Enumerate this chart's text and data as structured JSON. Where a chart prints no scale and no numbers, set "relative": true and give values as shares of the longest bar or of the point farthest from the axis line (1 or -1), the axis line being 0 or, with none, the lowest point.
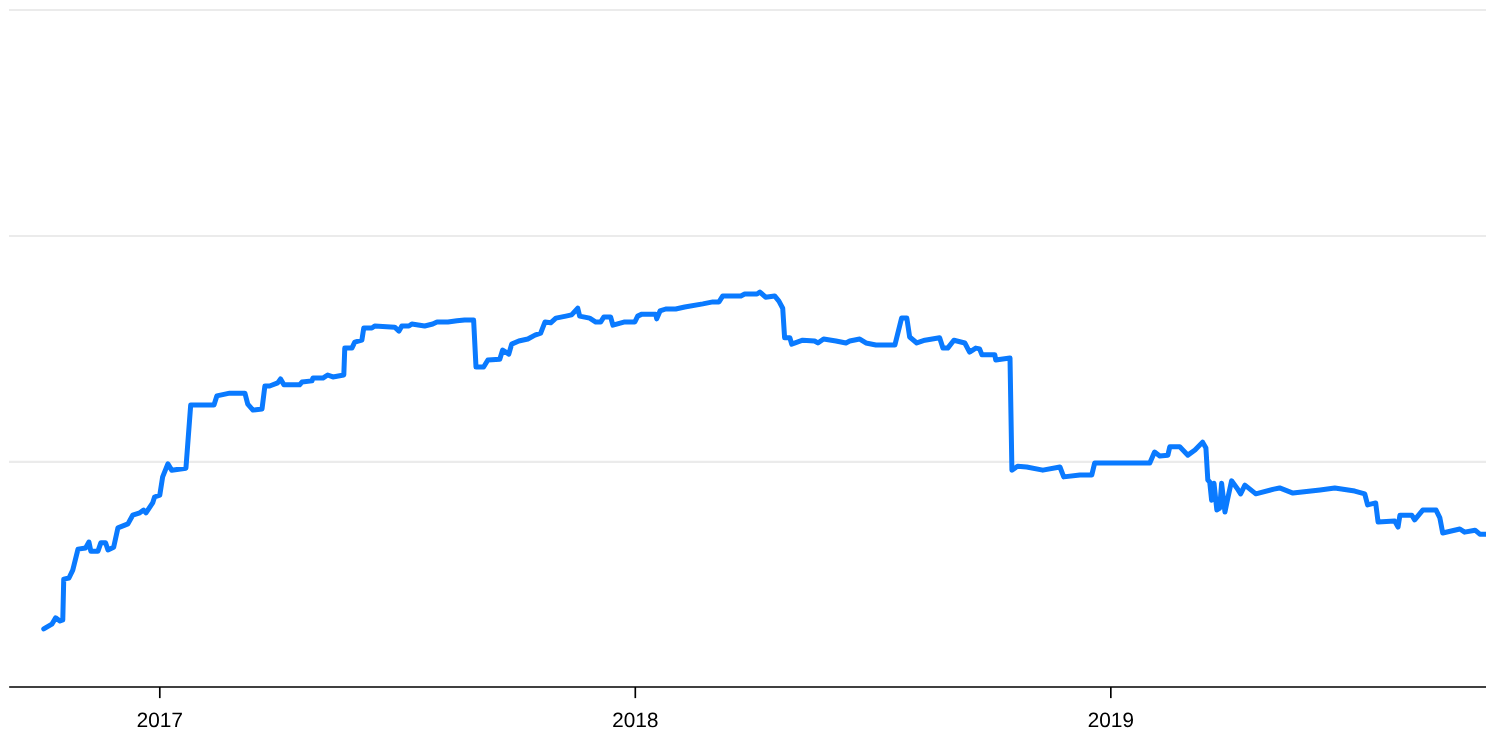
{
  "chart_data": {
    "type": "line",
    "relative": true,
    "tick_labels": "x",
    "line_style": "solid",
    "marker": "none",
    "ref_lines": [
      {
        "axis": "y",
        "value": 0.57,
        "color": "#ebebeb"
      },
      {
        "axis": "y",
        "value": 1.142,
        "color": "#ebebeb"
      },
      {
        "axis": "y",
        "value": 1.714,
        "color": "#ebebeb"
      }
    ],
    "xlim": [
      2016.685,
      2019.789
    ],
    "xticks": [
      2017,
      2018,
      2019
    ],
    "series": [
      {
        "color": "#0a7aff",
        "x": [
          2016.756,
          2016.773,
          2016.781,
          2016.79,
          2016.796,
          2016.798,
          2016.809,
          2016.817,
          2016.828,
          2016.844,
          2016.851,
          2016.855,
          2016.87,
          2016.876,
          2016.886,
          2016.891,
          2016.903,
          2016.912,
          2016.933,
          2016.943,
          2016.958,
          2016.966,
          2016.971,
          2016.985,
          2016.989,
          2017.0,
          2017.006,
          2017.017,
          2017.025,
          2017.055,
          2017.065,
          2017.114,
          2017.12,
          2017.147,
          2017.179,
          2017.185,
          2017.196,
          2017.215,
          2017.221,
          2017.231,
          2017.248,
          2017.254,
          2017.261,
          2017.294,
          2017.299,
          2017.32,
          2017.322,
          2017.343,
          2017.353,
          2017.364,
          2017.387,
          2017.389,
          2017.404,
          2017.41,
          2017.425,
          2017.429,
          2017.446,
          2017.452,
          2017.494,
          2017.503,
          2017.509,
          2017.524,
          2017.53,
          2017.557,
          2017.574,
          2017.583,
          2017.606,
          2017.625,
          2017.641,
          2017.66,
          2017.665,
          2017.681,
          2017.69,
          2017.715,
          2017.721,
          2017.734,
          2017.74,
          2017.755,
          2017.774,
          2017.789,
          2017.801,
          2017.81,
          2017.822,
          2017.833,
          2017.854,
          2017.866,
          2017.879,
          2017.883,
          2017.904,
          2017.917,
          2017.927,
          2017.934,
          2017.948,
          2017.953,
          2017.976,
          2017.999,
          2018.005,
          2018.014,
          2018.043,
          2018.045,
          2018.052,
          2018.064,
          2018.085,
          2018.104,
          2018.142,
          2018.163,
          2018.176,
          2018.184,
          2018.222,
          2018.23,
          2018.256,
          2018.262,
          2018.274,
          2018.293,
          2018.302,
          2018.31,
          2018.314,
          2018.325,
          2018.329,
          2018.352,
          2018.377,
          2018.384,
          2018.396,
          2018.422,
          2018.443,
          2018.451,
          2018.472,
          2018.485,
          2018.506,
          2018.546,
          2018.56,
          2018.571,
          2018.577,
          2018.592,
          2018.609,
          2018.64,
          2018.647,
          2018.657,
          2018.67,
          2018.693,
          2018.703,
          2018.716,
          2018.724,
          2018.729,
          2018.756,
          2018.758,
          2018.788,
          2018.792,
          2018.804,
          2018.823,
          2018.857,
          2018.893,
          2018.901,
          2018.935,
          2018.96,
          2018.966,
          2019.082,
          2019.092,
          2019.103,
          2019.12,
          2019.124,
          2019.145,
          2019.162,
          2019.177,
          2019.193,
          2019.2,
          2019.204,
          2019.208,
          2019.212,
          2019.217,
          2019.223,
          2019.229,
          2019.233,
          2019.24,
          2019.246,
          2019.254,
          2019.265,
          2019.273,
          2019.282,
          2019.305,
          2019.343,
          2019.355,
          2019.383,
          2019.44,
          2019.471,
          2019.513,
          2019.534,
          2019.54,
          2019.557,
          2019.562,
          2019.597,
          2019.604,
          2019.608,
          2019.633,
          2019.639,
          2019.656,
          2019.684,
          2019.692,
          2019.698,
          2019.734,
          2019.744,
          2019.766,
          2019.776,
          2019.789
        ],
        "values": [
          0.147,
          0.159,
          0.175,
          0.167,
          0.17,
          0.273,
          0.276,
          0.296,
          0.349,
          0.352,
          0.367,
          0.344,
          0.344,
          0.365,
          0.365,
          0.347,
          0.354,
          0.403,
          0.413,
          0.435,
          0.441,
          0.448,
          0.441,
          0.466,
          0.481,
          0.486,
          0.532,
          0.565,
          0.549,
          0.554,
          0.714,
          0.714,
          0.737,
          0.744,
          0.744,
          0.716,
          0.701,
          0.704,
          0.762,
          0.762,
          0.77,
          0.78,
          0.765,
          0.765,
          0.772,
          0.775,
          0.782,
          0.782,
          0.79,
          0.785,
          0.79,
          0.858,
          0.858,
          0.873,
          0.878,
          0.909,
          0.909,
          0.914,
          0.911,
          0.901,
          0.914,
          0.914,
          0.919,
          0.914,
          0.919,
          0.924,
          0.924,
          0.927,
          0.929,
          0.929,
          0.81,
          0.81,
          0.828,
          0.83,
          0.853,
          0.843,
          0.868,
          0.876,
          0.881,
          0.891,
          0.896,
          0.924,
          0.922,
          0.934,
          0.939,
          0.942,
          0.959,
          0.939,
          0.934,
          0.924,
          0.924,
          0.937,
          0.937,
          0.916,
          0.924,
          0.924,
          0.939,
          0.944,
          0.944,
          0.932,
          0.952,
          0.957,
          0.957,
          0.962,
          0.97,
          0.975,
          0.975,
          0.99,
          0.99,
          0.995,
          0.995,
          1.0,
          0.987,
          0.99,
          0.977,
          0.959,
          0.884,
          0.884,
          0.868,
          0.878,
          0.876,
          0.871,
          0.881,
          0.876,
          0.871,
          0.876,
          0.881,
          0.871,
          0.866,
          0.866,
          0.934,
          0.934,
          0.886,
          0.871,
          0.878,
          0.884,
          0.858,
          0.858,
          0.878,
          0.871,
          0.848,
          0.858,
          0.856,
          0.841,
          0.841,
          0.828,
          0.833,
          0.549,
          0.559,
          0.557,
          0.549,
          0.557,
          0.532,
          0.537,
          0.537,
          0.567,
          0.567,
          0.595,
          0.585,
          0.587,
          0.608,
          0.608,
          0.587,
          0.6,
          0.62,
          0.605,
          0.524,
          0.519,
          0.473,
          0.516,
          0.448,
          0.453,
          0.516,
          0.443,
          0.478,
          0.522,
          0.504,
          0.489,
          0.511,
          0.489,
          0.501,
          0.504,
          0.491,
          0.499,
          0.504,
          0.496,
          0.489,
          0.461,
          0.466,
          0.418,
          0.42,
          0.405,
          0.435,
          0.435,
          0.423,
          0.448,
          0.448,
          0.428,
          0.39,
          0.4,
          0.392,
          0.397,
          0.387,
          0.387
        ]
      }
    ]
  }
}
